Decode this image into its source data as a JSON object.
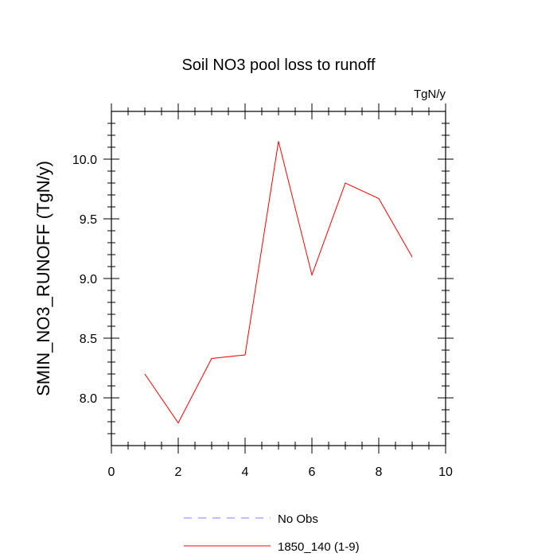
{
  "chart_data": {
    "type": "line",
    "title": "Soil NO3 pool loss to runoff",
    "units_label": "TgN/y",
    "ylabel": "SMIN_NO3_RUNOFF  (TgN/y)",
    "xlabel": "",
    "xlim": [
      0,
      10
    ],
    "ylim": [
      7.6,
      10.4
    ],
    "x_ticks": [
      0,
      2,
      4,
      6,
      8,
      10
    ],
    "x_tick_labels": [
      "0",
      "2",
      "4",
      "6",
      "8",
      "10"
    ],
    "y_ticks": [
      8.0,
      8.5,
      9.0,
      9.5,
      10.0
    ],
    "y_tick_labels": [
      "8.0",
      "8.5",
      "9.0",
      "9.5",
      "10.0"
    ],
    "grid": false,
    "legend_position": "bottom",
    "series": [
      {
        "name": "1850_140 (1-9)",
        "color": "#ff0000",
        "style": "solid",
        "x": [
          1,
          2,
          3,
          4,
          5,
          6,
          7,
          8,
          9
        ],
        "y": [
          8.2,
          7.79,
          8.33,
          8.36,
          10.15,
          9.03,
          9.8,
          9.67,
          9.18
        ]
      }
    ],
    "legend": [
      {
        "label": "No Obs",
        "color": "#8080ff",
        "style": "dashed"
      },
      {
        "label": "1850_140 (1-9)",
        "color": "#ff0000",
        "style": "solid"
      }
    ]
  }
}
